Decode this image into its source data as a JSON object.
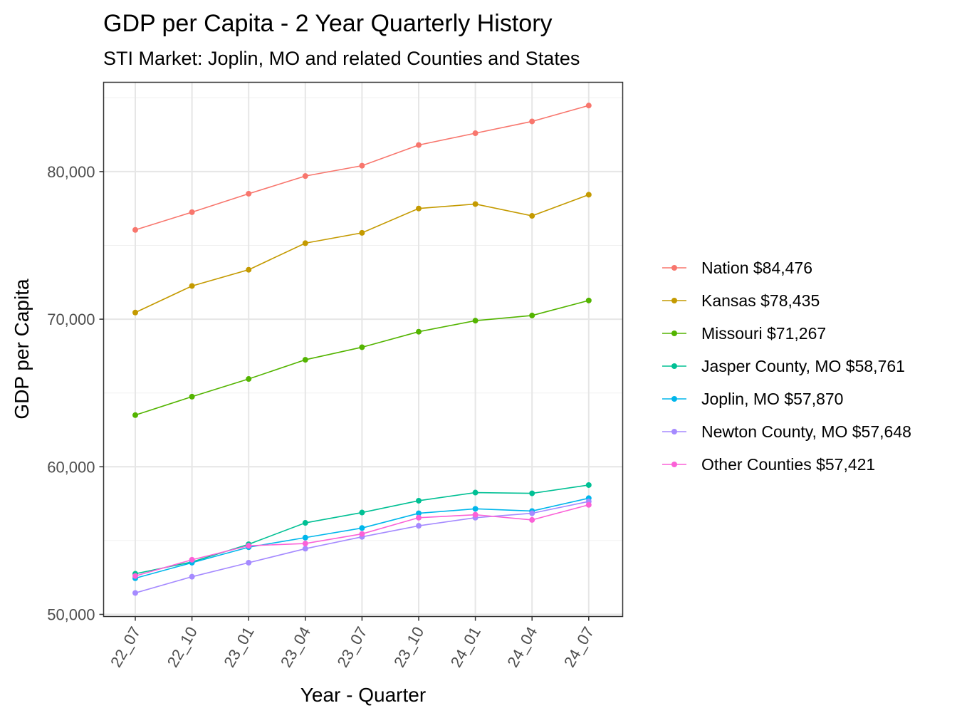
{
  "chart_data": {
    "type": "line",
    "title": "GDP per Capita - 2 Year Quarterly History",
    "subtitle": "STI Market: Joplin, MO and related Counties and States",
    "xlabel": "Year - Quarter",
    "ylabel": "GDP per Capita",
    "categories": [
      "22_07",
      "22_10",
      "23_01",
      "23_04",
      "23_07",
      "23_10",
      "24_01",
      "24_04",
      "24_07"
    ],
    "ylim": [
      49700,
      85700
    ],
    "yticks": [
      50000,
      60000,
      70000,
      80000
    ],
    "ytick_labels": [
      "50,000",
      "60,000",
      "70,000",
      "80,000"
    ],
    "grid": true,
    "legend_position": "right",
    "series": [
      {
        "name": "Nation $84,476",
        "color": "#F8766D",
        "values": [
          76050,
          77250,
          78500,
          79700,
          80400,
          81800,
          82600,
          83400,
          84476
        ]
      },
      {
        "name": "Kansas $78,435",
        "color": "#C49A00",
        "values": [
          70450,
          72250,
          73350,
          75150,
          75850,
          77500,
          77800,
          77000,
          78435
        ]
      },
      {
        "name": "Missouri $71,267",
        "color": "#53B400",
        "values": [
          63500,
          64750,
          65950,
          67250,
          68100,
          69150,
          69900,
          70250,
          71267
        ]
      },
      {
        "name": "Jasper County, MO $58,761",
        "color": "#00C094",
        "values": [
          52750,
          53550,
          54750,
          56200,
          56900,
          57700,
          58250,
          58200,
          58761
        ]
      },
      {
        "name": "Joplin, MO $57,870",
        "color": "#00B6EB",
        "values": [
          52450,
          53500,
          54550,
          55200,
          55850,
          56850,
          57150,
          57000,
          57870
        ]
      },
      {
        "name": "Newton County, MO $57,648",
        "color": "#A58AFF",
        "values": [
          51450,
          52550,
          53500,
          54450,
          55250,
          56000,
          56550,
          56850,
          57648
        ]
      },
      {
        "name": "Other Counties $57,421",
        "color": "#FB61D7",
        "values": [
          52600,
          53700,
          54650,
          54800,
          55450,
          56550,
          56750,
          56400,
          57421
        ]
      }
    ]
  }
}
